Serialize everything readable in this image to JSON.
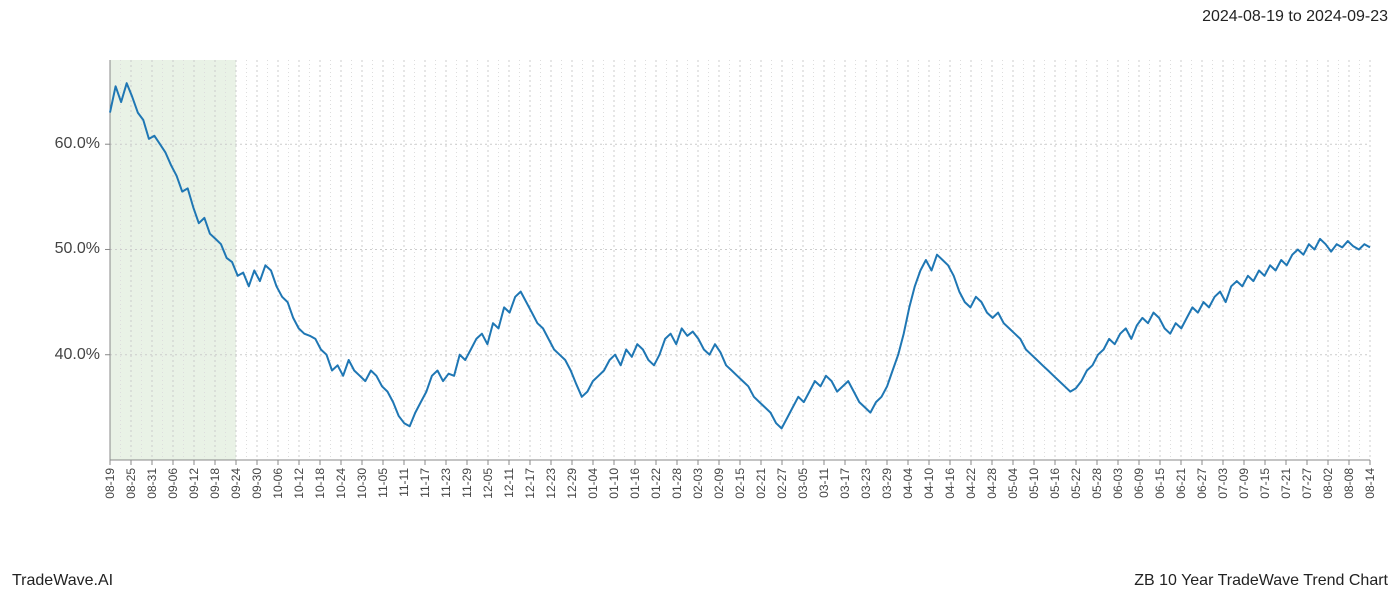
{
  "header": {
    "date_range": "2024-08-19 to 2024-09-23"
  },
  "footer": {
    "left": "TradeWave.AI",
    "right": "ZB 10 Year TradeWave Trend Chart"
  },
  "chart": {
    "type": "line",
    "background_color": "#ffffff",
    "highlight_region": {
      "fill": "#d4e6ce",
      "opacity": 0.5,
      "x_start_idx": 0,
      "x_end_idx": 6
    },
    "line": {
      "color": "#1f77b4",
      "width": 2
    },
    "axes": {
      "border_color": "#888888",
      "border_width": 1
    },
    "grid": {
      "major_color": "#cccccc",
      "major_dash": "2,3",
      "minor_color": "#dddddd",
      "minor_dash": "1,3"
    },
    "y_axis": {
      "min": 30,
      "max": 68,
      "ticks": [
        40,
        50,
        60
      ],
      "tick_labels": [
        "40.0%",
        "50.0%",
        "60.0%"
      ],
      "label_fontsize": 16
    },
    "x_axis": {
      "tick_labels": [
        "08-19",
        "08-25",
        "08-31",
        "09-06",
        "09-12",
        "09-18",
        "09-24",
        "09-30",
        "10-06",
        "10-12",
        "10-18",
        "10-24",
        "10-30",
        "11-05",
        "11-11",
        "11-17",
        "11-23",
        "11-29",
        "12-05",
        "12-11",
        "12-17",
        "12-23",
        "12-29",
        "01-04",
        "01-10",
        "01-16",
        "01-22",
        "01-28",
        "02-03",
        "02-09",
        "02-15",
        "02-21",
        "02-27",
        "03-05",
        "03-11",
        "03-17",
        "03-23",
        "03-29",
        "04-04",
        "04-10",
        "04-16",
        "04-22",
        "04-28",
        "05-04",
        "05-10",
        "05-16",
        "05-22",
        "05-28",
        "06-03",
        "06-09",
        "06-15",
        "06-21",
        "06-27",
        "07-03",
        "07-09",
        "07-15",
        "07-21",
        "07-27",
        "08-02",
        "08-08",
        "08-14"
      ],
      "label_fontsize": 12
    },
    "series": {
      "values": [
        63.0,
        65.5,
        64.0,
        65.8,
        64.5,
        63.0,
        62.3,
        60.5,
        60.8,
        60.0,
        59.2,
        58.0,
        57.0,
        55.5,
        55.8,
        54.0,
        52.5,
        53.0,
        51.5,
        51.0,
        50.5,
        49.2,
        48.8,
        47.5,
        47.8,
        46.5,
        48.0,
        47.0,
        48.5,
        48.0,
        46.5,
        45.5,
        45.0,
        43.5,
        42.5,
        42.0,
        41.8,
        41.5,
        40.5,
        40.0,
        38.5,
        39.0,
        38.0,
        39.5,
        38.5,
        38.0,
        37.5,
        38.5,
        38.0,
        37.0,
        36.5,
        35.5,
        34.2,
        33.5,
        33.2,
        34.5,
        35.5,
        36.5,
        38.0,
        38.5,
        37.5,
        38.2,
        38.0,
        40.0,
        39.5,
        40.5,
        41.5,
        42.0,
        41.0,
        43.0,
        42.5,
        44.5,
        44.0,
        45.5,
        46.0,
        45.0,
        44.0,
        43.0,
        42.5,
        41.5,
        40.5,
        40.0,
        39.5,
        38.5,
        37.2,
        36.0,
        36.5,
        37.5,
        38.0,
        38.5,
        39.5,
        40.0,
        39.0,
        40.5,
        39.8,
        41.0,
        40.5,
        39.5,
        39.0,
        40.0,
        41.5,
        42.0,
        41.0,
        42.5,
        41.8,
        42.2,
        41.5,
        40.5,
        40.0,
        41.0,
        40.2,
        39.0,
        38.5,
        38.0,
        37.5,
        37.0,
        36.0,
        35.5,
        35.0,
        34.5,
        33.5,
        33.0,
        34.0,
        35.0,
        36.0,
        35.5,
        36.5,
        37.5,
        37.0,
        38.0,
        37.5,
        36.5,
        37.0,
        37.5,
        36.5,
        35.5,
        35.0,
        34.5,
        35.5,
        36.0,
        37.0,
        38.5,
        40.0,
        42.0,
        44.5,
        46.5,
        48.0,
        49.0,
        48.0,
        49.5,
        49.0,
        48.5,
        47.5,
        46.0,
        45.0,
        44.5,
        45.5,
        45.0,
        44.0,
        43.5,
        44.0,
        43.0,
        42.5,
        42.0,
        41.5,
        40.5,
        40.0,
        39.5,
        39.0,
        38.5,
        38.0,
        37.5,
        37.0,
        36.5,
        36.8,
        37.5,
        38.5,
        39.0,
        40.0,
        40.5,
        41.5,
        41.0,
        42.0,
        42.5,
        41.5,
        42.8,
        43.5,
        43.0,
        44.0,
        43.5,
        42.5,
        42.0,
        43.0,
        42.5,
        43.5,
        44.5,
        44.0,
        45.0,
        44.5,
        45.5,
        46.0,
        45.0,
        46.5,
        47.0,
        46.5,
        47.5,
        47.0,
        48.0,
        47.5,
        48.5,
        48.0,
        49.0,
        48.5,
        49.5,
        50.0,
        49.5,
        50.5,
        50.0,
        51.0,
        50.5,
        49.8,
        50.5,
        50.2,
        50.8,
        50.3,
        50.0,
        50.5,
        50.2
      ]
    }
  }
}
